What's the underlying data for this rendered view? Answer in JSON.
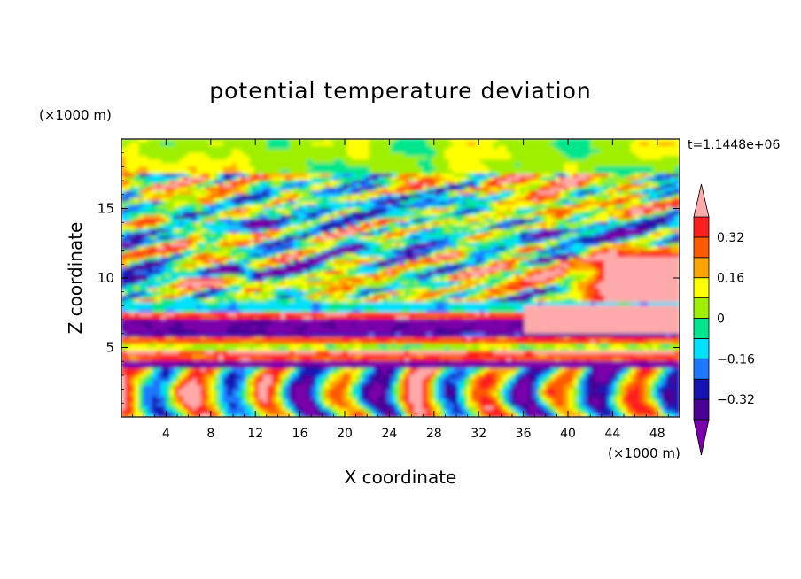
{
  "chart_data": {
    "type": "heatmap",
    "title": "potential temperature deviation",
    "xlabel": "X coordinate",
    "ylabel": "Z coordinate",
    "x_unit": "(×1000 m)",
    "y_unit": "(×1000 m)",
    "time_label": "t=1.1448e+06",
    "xlim": [
      0,
      50
    ],
    "ylim": [
      0,
      20
    ],
    "x_ticks": [
      4,
      8,
      12,
      16,
      20,
      24,
      28,
      32,
      36,
      40,
      44,
      48
    ],
    "y_ticks": [
      5,
      10,
      15
    ],
    "colorbar": {
      "levels": [
        -0.4,
        -0.32,
        -0.24,
        -0.16,
        -0.08,
        0,
        0.08,
        0.16,
        0.24,
        0.32,
        0.4
      ],
      "labels": [
        "0.32",
        "0.16",
        "0",
        "−0.16",
        "−0.32"
      ],
      "label_values": [
        0.32,
        0.16,
        0,
        -0.16,
        -0.32
      ],
      "colors": [
        "#7a00ab",
        "#4b0095",
        "#1414b4",
        "#1e78ff",
        "#00e1ff",
        "#00e68c",
        "#9ff000",
        "#ffff00",
        "#ffa500",
        "#ff5a00",
        "#ff1e1e",
        "#ffaaaa"
      ],
      "extend": "both"
    }
  }
}
